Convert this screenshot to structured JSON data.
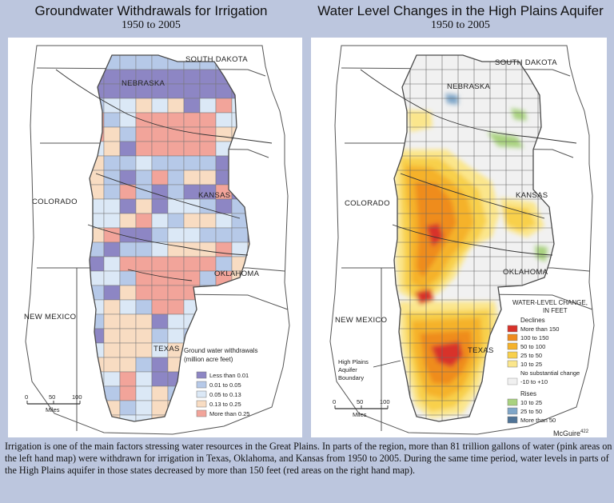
{
  "left_title": {
    "main": "Groundwater Withdrawals for Irrigation",
    "years": "1950 to 2005"
  },
  "right_title": {
    "main": "Water Level Changes in the High Plains Aquifer",
    "years": "1950 to 2005"
  },
  "states": {
    "south_dakota": "SOUTH DAKOTA",
    "nebraska": "NEBRASKA",
    "colorado": "COLORADO",
    "kansas": "KANSAS",
    "oklahoma": "OKLAHOMA",
    "new_mexico": "NEW MEXICO",
    "texas": "TEXAS"
  },
  "left_legend": {
    "title_line1": "Ground water withdrawals",
    "title_line2": "(million acre feet)",
    "items": [
      {
        "label": "Less than 0.01",
        "color": "#8d86c4"
      },
      {
        "label": "0.01 to 0.05",
        "color": "#b6c9e8"
      },
      {
        "label": "0.05 to 0.13",
        "color": "#dbe8f6"
      },
      {
        "label": "0.13 to 0.25",
        "color": "#f8dcc2"
      },
      {
        "label": "More than 0.25",
        "color": "#f2a49a"
      }
    ]
  },
  "right_legend": {
    "title_line1": "WATER-LEVEL CHANGE,",
    "title_line2": "IN FEET",
    "declines_label": "Declines",
    "declines": [
      {
        "label": "More than 150",
        "color": "#d8322a"
      },
      {
        "label": "100 to 150",
        "color": "#ef8c1e"
      },
      {
        "label": "50 to 100",
        "color": "#f5b22a"
      },
      {
        "label": "25 to 50",
        "color": "#f8d04c"
      },
      {
        "label": "10 to 25",
        "color": "#fbe68c"
      }
    ],
    "nochange_label": "No substantial change",
    "nochange_item": {
      "label": "-10 to +10",
      "color": "#f0f0f0"
    },
    "rises_label": "Rises",
    "rises": [
      {
        "label": "10 to 25",
        "color": "#a9d27f"
      },
      {
        "label": "25 to 50",
        "color": "#7fa6c8"
      },
      {
        "label": "More than 50",
        "color": "#4f7396"
      }
    ]
  },
  "boundary_label": {
    "line1": "High Plains",
    "line2": "Aquifer",
    "line3": "Boundary"
  },
  "scale": {
    "zero": "0",
    "mid": "50",
    "max": "100",
    "unit": "Miles"
  },
  "credit": {
    "name": "McGuire",
    "ref": "422"
  },
  "caption": "Irrigation is one of the main factors stressing water resources in the Great Plains. In parts of the region, more than 81 trillion gallons of water (pink areas on the left hand map) were withdrawn for irrigation in Texas, Oklahoma, and Kansas from 1950 to 2005. During the same time period, water levels in parts of the High Plains aquifer in those states decreased by more than 150 feet (red areas on the right hand map)."
}
